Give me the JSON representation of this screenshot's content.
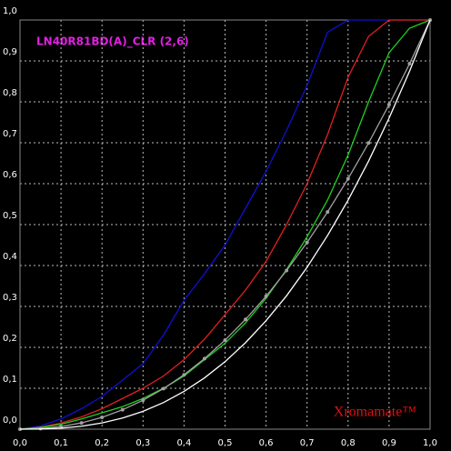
{
  "chart_data": {
    "type": "line",
    "title": "LN40R81BD(A)_CLR (2,6)",
    "watermark": "Xromamate™",
    "x": [
      0,
      0.05,
      0.1,
      0.15,
      0.2,
      0.25,
      0.3,
      0.35,
      0.4,
      0.45,
      0.5,
      0.55,
      0.6,
      0.65,
      0.7,
      0.75,
      0.8,
      0.85,
      0.9,
      0.95,
      1
    ],
    "series": [
      {
        "color": "#1010d0",
        "values": [
          0,
          0.008,
          0.025,
          0.05,
          0.08,
          0.12,
          0.16,
          0.23,
          0.315,
          0.38,
          0.45,
          0.54,
          0.63,
          0.73,
          0.84,
          0.97,
          1,
          1,
          1,
          1,
          1
        ]
      },
      {
        "color": "#e02020",
        "values": [
          0,
          0.005,
          0.015,
          0.03,
          0.05,
          0.075,
          0.1,
          0.13,
          0.17,
          0.22,
          0.28,
          0.34,
          0.41,
          0.5,
          0.6,
          0.72,
          0.86,
          0.96,
          1,
          1,
          1
        ]
      },
      {
        "color": "#20d020",
        "values": [
          0,
          0.004,
          0.012,
          0.025,
          0.04,
          0.055,
          0.075,
          0.1,
          0.13,
          0.17,
          0.21,
          0.26,
          0.32,
          0.39,
          0.47,
          0.56,
          0.67,
          0.8,
          0.92,
          0.98,
          1
        ]
      },
      {
        "color": "#a0a0a0",
        "markers": true,
        "values": [
          0,
          0.0014,
          0.0063,
          0.0154,
          0.029,
          0.0474,
          0.0707,
          0.0992,
          0.1329,
          0.1726,
          0.2176,
          0.2683,
          0.3246,
          0.3877,
          0.4563,
          0.5309,
          0.6121,
          0.6994,
          0.7932,
          0.8932,
          1
        ]
      },
      {
        "color": "#ffffff",
        "values": [
          0,
          0.0004,
          0.0025,
          0.0072,
          0.0152,
          0.0272,
          0.0436,
          0.0652,
          0.0924,
          0.1254,
          0.1649,
          0.2114,
          0.2651,
          0.326,
          0.3955,
          0.4734,
          0.5596,
          0.6551,
          0.7602,
          0.8751,
          1
        ]
      }
    ],
    "xlim": [
      0,
      1
    ],
    "ylim": [
      0,
      1
    ],
    "xticks": [
      {
        "value": 0,
        "label": "0,0"
      },
      {
        "value": 0.1,
        "label": "0,1"
      },
      {
        "value": 0.2,
        "label": "0,2"
      },
      {
        "value": 0.3,
        "label": "0,3"
      },
      {
        "value": 0.4,
        "label": "0,4"
      },
      {
        "value": 0.5,
        "label": "0,5"
      },
      {
        "value": 0.6,
        "label": "0,6"
      },
      {
        "value": 0.7,
        "label": "0,7"
      },
      {
        "value": 0.8,
        "label": "0,8"
      },
      {
        "value": 0.9,
        "label": "0,9"
      },
      {
        "value": 1,
        "label": "1,0"
      }
    ],
    "yticks": [
      {
        "value": 0,
        "label": "0,0"
      },
      {
        "value": 0.1,
        "label": "0,1"
      },
      {
        "value": 0.2,
        "label": "0,2"
      },
      {
        "value": 0.3,
        "label": "0,3"
      },
      {
        "value": 0.4,
        "label": "0,4"
      },
      {
        "value": 0.5,
        "label": "0,5"
      },
      {
        "value": 0.6,
        "label": "0,6"
      },
      {
        "value": 0.7,
        "label": "0,7"
      },
      {
        "value": 0.8,
        "label": "0,8"
      },
      {
        "value": 0.9,
        "label": "0,9"
      },
      {
        "value": 1,
        "label": "1,0"
      }
    ],
    "grid": true
  }
}
